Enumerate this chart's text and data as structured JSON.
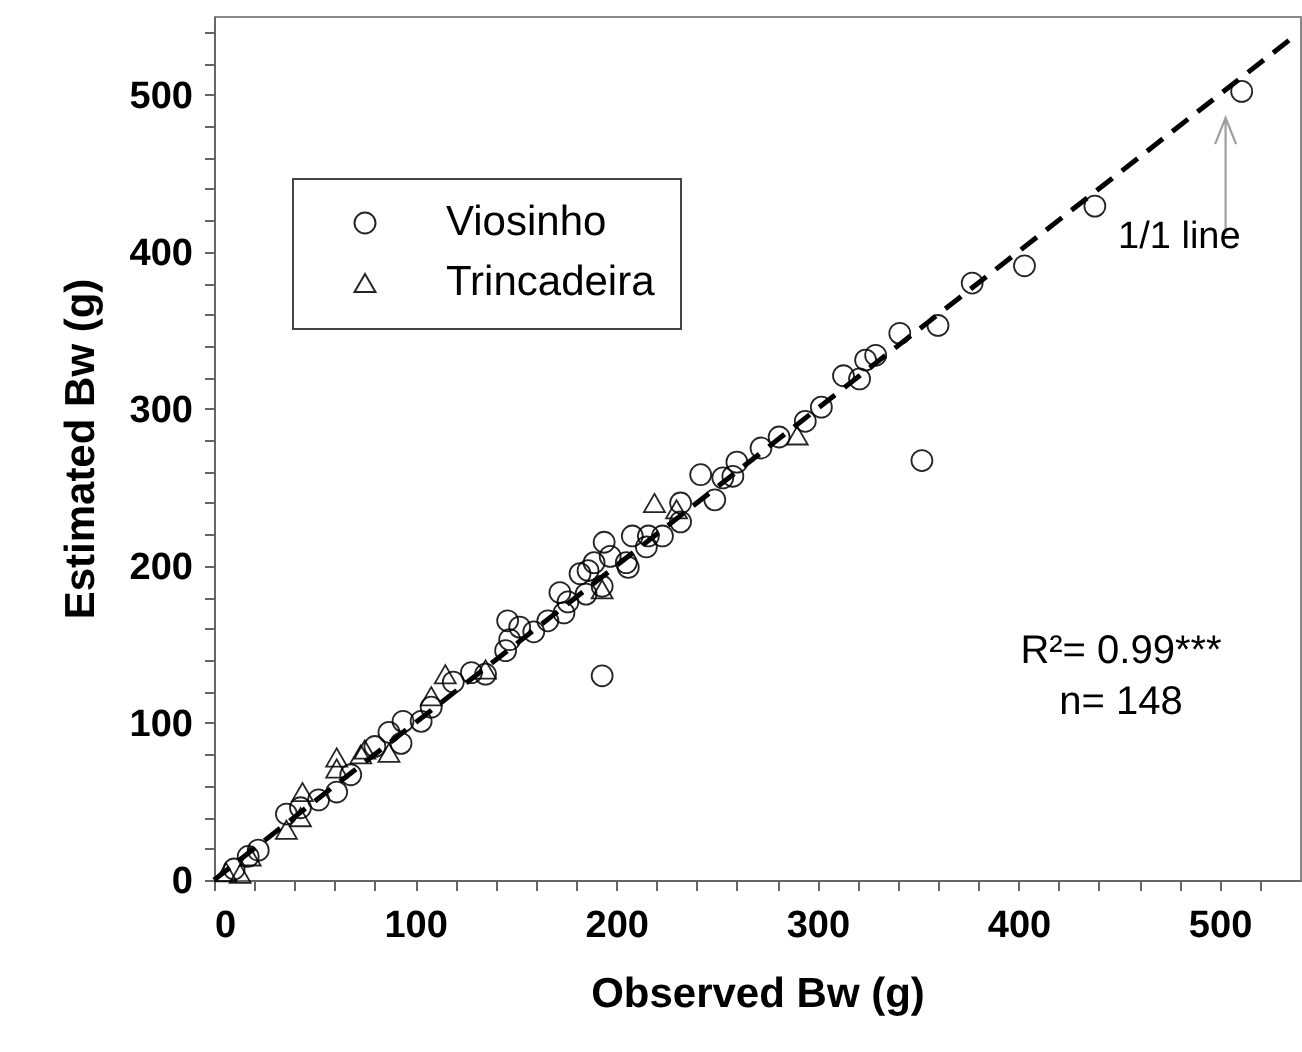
{
  "chart_data": {
    "type": "scatter",
    "xlabel": "Observed Bw (g)",
    "ylabel": "Estimated Bw (g)",
    "xlim": [
      0,
      540
    ],
    "ylim": [
      0,
      550
    ],
    "xticks": [
      0,
      {
        "value": 20,
        "label": null
      },
      {
        "value": 40,
        "label": null
      },
      {
        "value": 60,
        "label": null
      },
      {
        "value": 80,
        "label": null
      },
      100,
      {
        "value": 120,
        "label": null
      },
      {
        "value": 140,
        "label": null
      },
      {
        "value": 160,
        "label": null
      },
      {
        "value": 180,
        "label": null
      },
      200,
      {
        "value": 220,
        "label": null
      },
      {
        "value": 240,
        "label": null
      },
      {
        "value": 260,
        "label": null
      },
      {
        "value": 280,
        "label": null
      },
      300,
      {
        "value": 320,
        "label": null
      },
      {
        "value": 340,
        "label": null
      },
      {
        "value": 360,
        "label": null
      },
      {
        "value": 380,
        "label": null
      },
      400,
      {
        "value": 420,
        "label": null
      },
      {
        "value": 440,
        "label": null
      },
      {
        "value": 460,
        "label": null
      },
      {
        "value": 480,
        "label": null
      },
      500,
      {
        "value": 520,
        "label": null
      }
    ],
    "yticks": [
      0,
      {
        "value": 20,
        "label": null
      },
      {
        "value": 40,
        "label": null
      },
      {
        "value": 60,
        "label": null
      },
      {
        "value": 80,
        "label": null
      },
      100,
      {
        "value": 120,
        "label": null
      },
      {
        "value": 140,
        "label": null
      },
      {
        "value": 160,
        "label": null
      },
      {
        "value": 180,
        "label": null
      },
      200,
      {
        "value": 220,
        "label": null
      },
      {
        "value": 240,
        "label": null
      },
      {
        "value": 260,
        "label": null
      },
      {
        "value": 280,
        "label": null
      },
      300,
      {
        "value": 320,
        "label": null
      },
      {
        "value": 340,
        "label": null
      },
      {
        "value": 360,
        "label": null
      },
      {
        "value": 380,
        "label": null
      },
      400,
      {
        "value": 420,
        "label": null
      },
      {
        "value": 440,
        "label": null
      },
      {
        "value": 460,
        "label": null
      },
      {
        "value": 480,
        "label": null
      },
      500,
      {
        "value": 520,
        "label": null
      },
      {
        "value": 540,
        "label": null
      }
    ],
    "legend": "top left",
    "grid": false,
    "series": [
      {
        "name": "Viosinho",
        "marker": "circle",
        "color": "#000000",
        "x": [
          511,
          438,
          403,
          377,
          360,
          341,
          329,
          324,
          321,
          313,
          302,
          294,
          281,
          272,
          352,
          260,
          258,
          253,
          242,
          249,
          232,
          232,
          223,
          215,
          216,
          208,
          206,
          205,
          194,
          197,
          189,
          186,
          182,
          193,
          185,
          172,
          176,
          174,
          166,
          159,
          146,
          152,
          147,
          145,
          193,
          135,
          128,
          119,
          108,
          103,
          94,
          93,
          87,
          80,
          68,
          61,
          52,
          36,
          43,
          22,
          17,
          10
        ],
        "values": [
          502,
          429,
          391,
          380,
          353,
          348,
          334,
          331,
          319,
          321,
          301,
          292,
          282,
          275,
          267,
          266,
          257,
          256,
          258,
          242,
          240,
          228,
          219,
          212,
          219,
          219,
          199,
          202,
          215,
          206,
          202,
          197,
          195,
          187,
          182,
          183,
          177,
          170,
          165,
          158,
          165,
          161,
          153,
          146,
          130,
          131,
          132,
          126,
          110,
          101,
          101,
          87,
          94,
          85,
          67,
          56,
          51,
          42,
          46,
          19,
          15,
          7
        ]
      },
      {
        "name": "Trincadeira",
        "marker": "triangle",
        "color": "#000000",
        "x": [
          219,
          290,
          193,
          230,
          115,
          135,
          108,
          87,
          75,
          73,
          61,
          61,
          44,
          36,
          43,
          18,
          13,
          6
        ],
        "values": [
          240,
          283,
          185,
          236,
          131,
          134,
          117,
          81,
          83,
          80,
          78,
          71,
          56,
          32,
          40,
          15,
          4,
          5
        ]
      },
      {
        "type": "line",
        "marker": "none",
        "line_style": "dashed",
        "color": "#000000",
        "x": [
          0,
          535
        ],
        "values": [
          0,
          535
        ]
      }
    ],
    "annotations": [
      "1/1 line",
      "R²= 0.99***",
      "n= 148"
    ]
  }
}
